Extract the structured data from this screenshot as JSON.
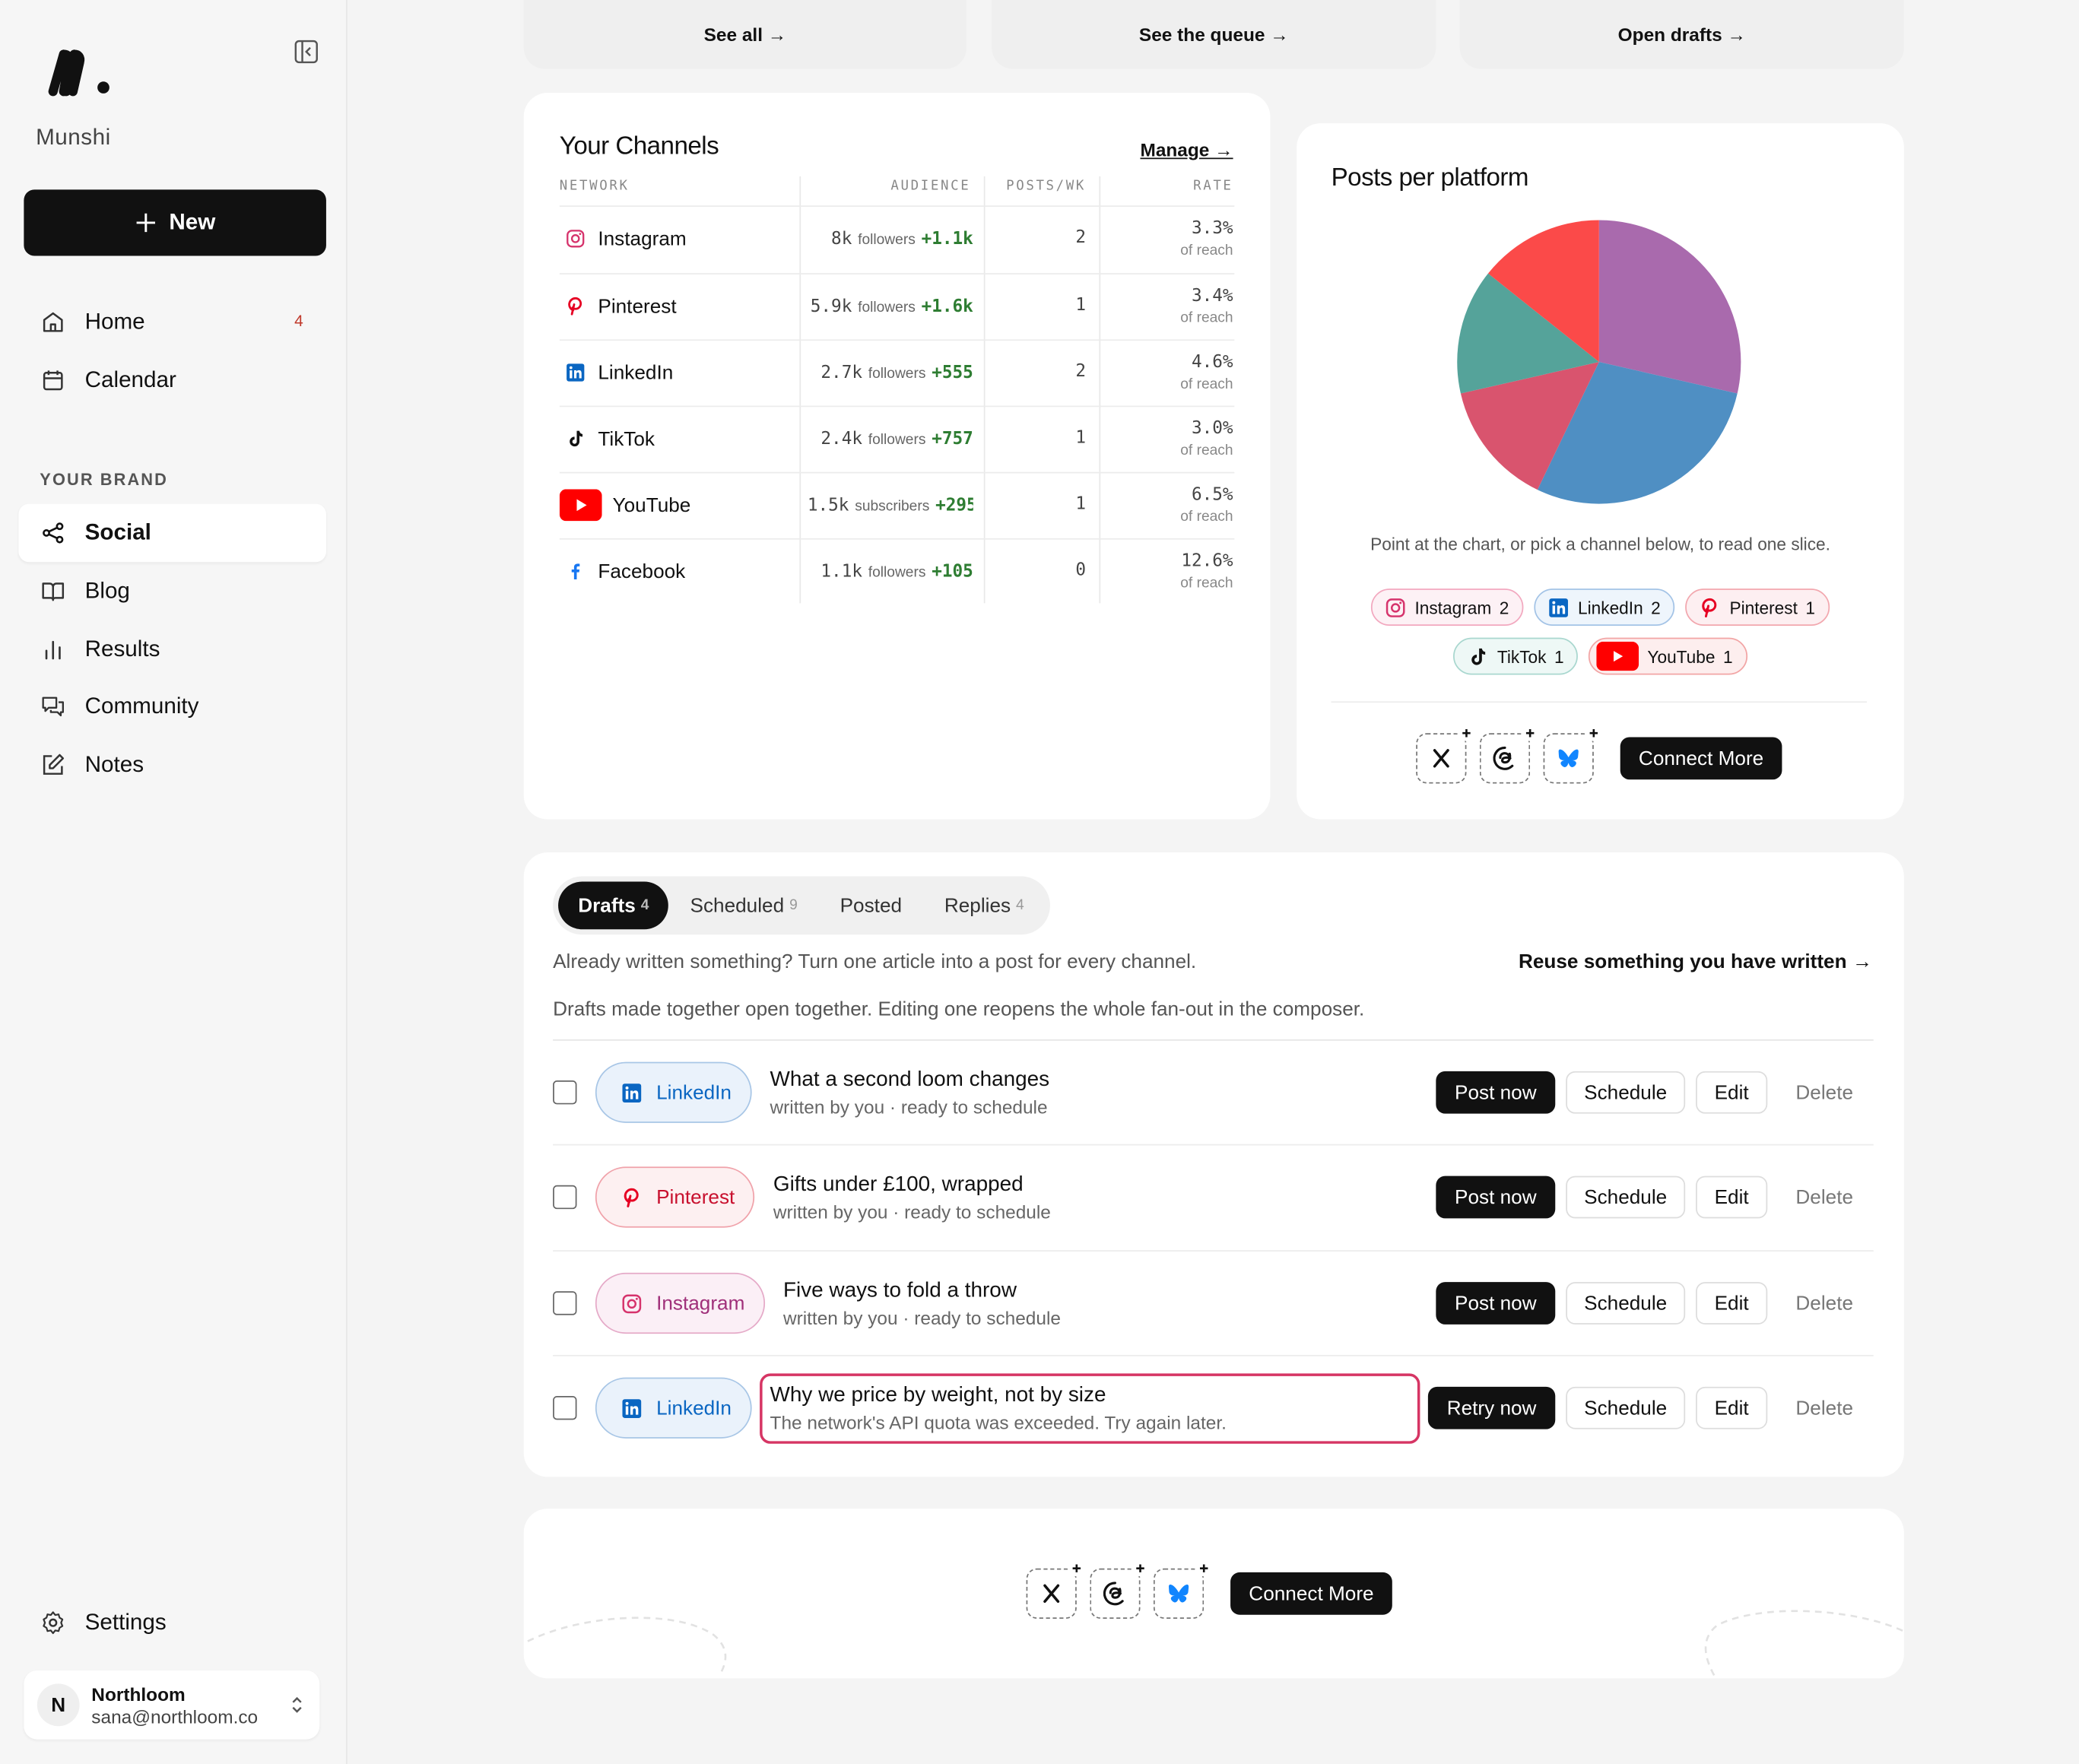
{
  "sidebar": {
    "brand": "Munshi",
    "new_button": "New",
    "nav": [
      {
        "label": "Home",
        "badge": "4"
      },
      {
        "label": "Calendar"
      }
    ],
    "section_label": "YOUR BRAND",
    "brand_nav": [
      "Social",
      "Blog",
      "Results",
      "Community",
      "Notes"
    ],
    "selected": "Social",
    "settings": "Settings",
    "account": {
      "initial": "N",
      "name": "Northloom",
      "email": "sana@northloom.co"
    }
  },
  "top_cards": [
    "See all →",
    "See the queue →",
    "Open drafts →"
  ],
  "channels": {
    "title": "Your Channels",
    "manage": "Manage →",
    "columns": [
      "NETWORK",
      "AUDIENCE",
      "POSTS/WK",
      "RATE"
    ],
    "rows": [
      {
        "network": "Instagram",
        "audience": "8k",
        "unit": "followers",
        "growth": "+1.1k",
        "posts": 2,
        "rate": "3.3%",
        "rate_note": "of reach"
      },
      {
        "network": "Pinterest",
        "audience": "5.9k",
        "unit": "followers",
        "growth": "+1.6k",
        "posts": 1,
        "rate": "3.4%",
        "rate_note": "of reach"
      },
      {
        "network": "LinkedIn",
        "audience": "2.7k",
        "unit": "followers",
        "growth": "+555",
        "posts": 2,
        "rate": "4.6%",
        "rate_note": "of reach"
      },
      {
        "network": "TikTok",
        "audience": "2.4k",
        "unit": "followers",
        "growth": "+757",
        "posts": 1,
        "rate": "3.0%",
        "rate_note": "of reach"
      },
      {
        "network": "YouTube",
        "audience": "1.5k",
        "unit": "subscribers",
        "growth": "+295",
        "posts": 1,
        "rate": "6.5%",
        "rate_note": "of reach"
      },
      {
        "network": "Facebook",
        "audience": "1.1k",
        "unit": "followers",
        "growth": "+105",
        "posts": 0,
        "rate": "12.6%",
        "rate_note": "of reach"
      }
    ]
  },
  "chart_data": {
    "type": "pie",
    "title": "Posts per platform",
    "categories": [
      "Instagram",
      "LinkedIn",
      "Pinterest",
      "TikTok",
      "YouTube"
    ],
    "values": [
      2,
      2,
      1,
      1,
      1
    ],
    "colors": [
      "#a96aad",
      "#4f8fc3",
      "#d9546e",
      "#55a39a",
      "#fb4a49"
    ]
  },
  "pie_hint": "Point at the chart, or pick a channel below, to read one slice.",
  "connect_button": "Connect More",
  "drafts": {
    "tabs": [
      {
        "label": "Drafts",
        "count": 4
      },
      {
        "label": "Scheduled",
        "count": 9
      },
      {
        "label": "Posted"
      },
      {
        "label": "Replies",
        "count": 4
      }
    ],
    "active_tab": 0,
    "intro": "Already written something? Turn one article into a post for every channel.",
    "reuse_link": "Reuse something you have written →",
    "note": "Drafts made together open together. Editing one reopens the whole fan-out in the composer.",
    "rows": [
      {
        "network": "LinkedIn",
        "title": "What a second loom changes",
        "subtitle": "written by you · ready to schedule",
        "primary": "Post now"
      },
      {
        "network": "Pinterest",
        "title": "Gifts under £100, wrapped",
        "subtitle": "written by you · ready to schedule",
        "primary": "Post now"
      },
      {
        "network": "Instagram",
        "title": "Five ways to fold a throw",
        "subtitle": "written by you · ready to schedule",
        "primary": "Post now"
      },
      {
        "network": "LinkedIn",
        "title": "Why we price by weight, not by size",
        "subtitle": "The network's API quota was exceeded. Try again later.",
        "primary": "Retry now",
        "error": true
      }
    ],
    "actions": [
      "Schedule",
      "Edit",
      "Delete"
    ]
  }
}
